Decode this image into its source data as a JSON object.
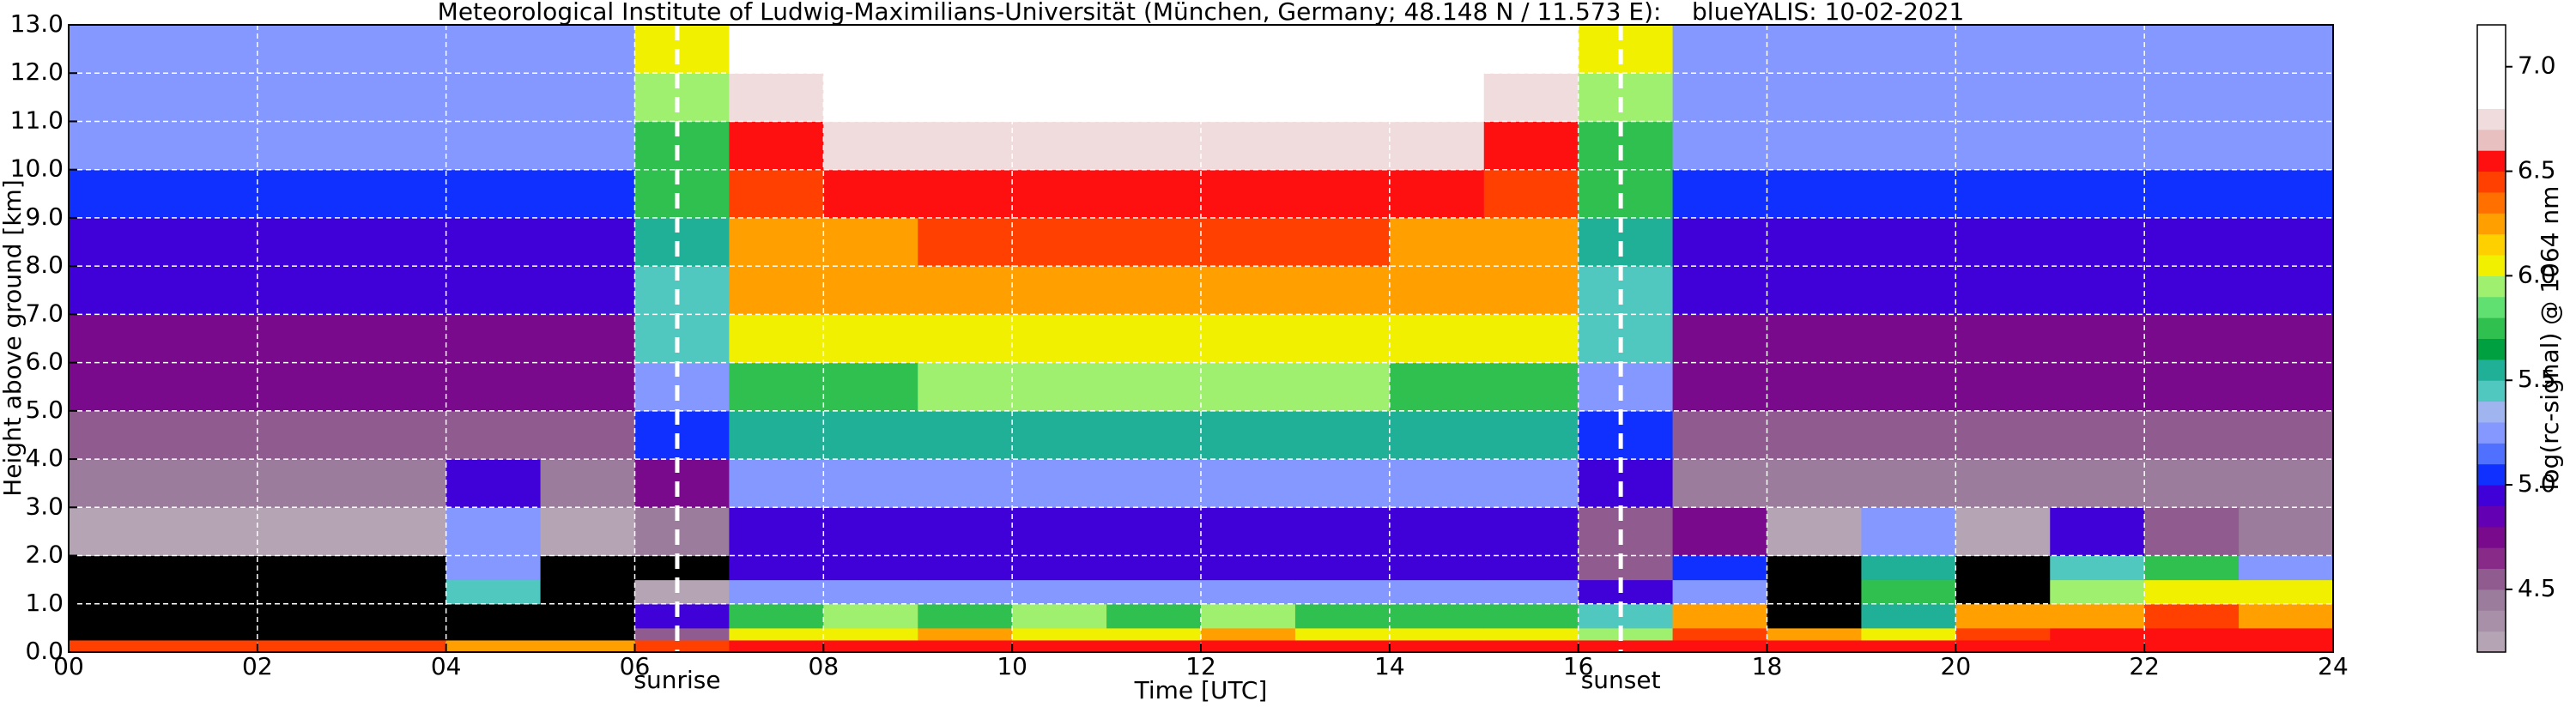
{
  "chart_data": {
    "type": "heatmap",
    "title": "Meteorological Institute of Ludwig-Maximilians-Universität (München, Germany; 48.148 N / 11.573 E):    blueYALIS: 10-02-2021",
    "xlabel": "Time [UTC]",
    "ylabel": "Height above ground [km]",
    "colorbar_label": "log(rc-signal) @ 1064 nm",
    "xlim": [
      0,
      24
    ],
    "ylim": [
      0,
      13
    ],
    "xticks": [
      {
        "value": 0,
        "label": "00"
      },
      {
        "value": 2,
        "label": "02"
      },
      {
        "value": 4,
        "label": "04"
      },
      {
        "value": 6,
        "label": "06"
      },
      {
        "value": 8,
        "label": "08"
      },
      {
        "value": 10,
        "label": "10"
      },
      {
        "value": 12,
        "label": "12"
      },
      {
        "value": 14,
        "label": "14"
      },
      {
        "value": 16,
        "label": "16"
      },
      {
        "value": 18,
        "label": "18"
      },
      {
        "value": 20,
        "label": "20"
      },
      {
        "value": 22,
        "label": "22"
      },
      {
        "value": 24,
        "label": "24"
      }
    ],
    "yticks": [
      {
        "value": 0,
        "label": "0.0"
      },
      {
        "value": 1,
        "label": "1.0"
      },
      {
        "value": 2,
        "label": "2.0"
      },
      {
        "value": 3,
        "label": "3.0"
      },
      {
        "value": 4,
        "label": "4.0"
      },
      {
        "value": 5,
        "label": "5.0"
      },
      {
        "value": 6,
        "label": "6.0"
      },
      {
        "value": 7,
        "label": "7.0"
      },
      {
        "value": 8,
        "label": "8.0"
      },
      {
        "value": 9,
        "label": "9.0"
      },
      {
        "value": 10,
        "label": "10.0"
      },
      {
        "value": 11,
        "label": "11.0"
      },
      {
        "value": 12,
        "label": "12.0"
      },
      {
        "value": 13,
        "label": "13.0"
      }
    ],
    "grid": true,
    "grid_color": "#ffffff",
    "zlim": [
      4.2,
      7.2
    ],
    "zticks": [
      4.5,
      {
        "value": 5,
        "label": "5.0"
      },
      5.5,
      {
        "value": 6,
        "label": "6.0"
      },
      6.5,
      {
        "value": 7,
        "label": "7.0"
      }
    ],
    "colormap": [
      "#b4a4b4",
      "#a890a8",
      "#9c7c9c",
      "#905c90",
      "#882a88",
      "#7a0a8c",
      "#6400b4",
      "#4000d8",
      "#1030ff",
      "#5070ff",
      "#8498ff",
      "#a0b4f0",
      "#50c8c0",
      "#20b098",
      "#00a040",
      "#30c050",
      "#60e070",
      "#a0f070",
      "#f0f000",
      "#ffd000",
      "#ffa000",
      "#ff7000",
      "#ff4000",
      "#ff1010",
      "#e8c0c0",
      "#f0dcdc",
      "#ffffff",
      "#ffffff",
      "#ffffff",
      "#ffffff"
    ],
    "under_color": "#000000",
    "annotations": [
      {
        "text": "sunrise",
        "x": 6.45
      },
      {
        "text": "sunset",
        "x": 16.45
      }
    ],
    "xbins": [
      0,
      1,
      2,
      3,
      4,
      5,
      6,
      7,
      8,
      9,
      10,
      11,
      12,
      13,
      14,
      15,
      16,
      17,
      18,
      19,
      20,
      21,
      22,
      23,
      24
    ],
    "ybins": [
      0,
      0.25,
      0.5,
      1,
      1.5,
      2,
      3,
      4,
      5,
      6,
      7,
      8,
      9,
      10,
      11,
      12,
      13
    ],
    "z": [
      [
        6.4,
        6.4,
        6.4,
        6.4,
        6.3,
        6.3,
        6.4,
        6.5,
        6.5,
        6.5,
        6.5,
        6.5,
        6.5,
        6.5,
        6.5,
        6.5,
        6.5,
        6.6,
        6.6,
        6.6,
        6.6,
        6.6,
        6.6,
        6.6
      ],
      [
        4.0,
        4.0,
        4.0,
        4.0,
        4.0,
        4.0,
        4.6,
        6.0,
        6.1,
        6.2,
        6.1,
        6.0,
        6.2,
        6.1,
        6.0,
        6.1,
        5.9,
        6.4,
        6.3,
        6.0,
        6.4,
        6.5,
        6.6,
        6.5
      ],
      [
        4.0,
        4.0,
        4.0,
        4.0,
        4.0,
        4.0,
        4.9,
        5.8,
        5.9,
        5.8,
        5.9,
        5.8,
        5.9,
        5.8,
        5.8,
        5.7,
        5.5,
        6.2,
        4.0,
        5.6,
        6.2,
        6.3,
        6.4,
        6.3
      ],
      [
        4.0,
        4.0,
        4.0,
        4.0,
        5.4,
        4.0,
        4.2,
        5.2,
        5.2,
        5.2,
        5.2,
        5.2,
        5.2,
        5.2,
        5.2,
        5.2,
        5.0,
        5.3,
        4.0,
        5.8,
        4.0,
        5.9,
        6.1,
        6.0
      ],
      [
        4.0,
        4.0,
        4.0,
        4.0,
        5.3,
        4.0,
        4.1,
        4.9,
        4.9,
        4.9,
        4.9,
        4.9,
        4.9,
        4.9,
        4.9,
        4.9,
        4.6,
        5.1,
        4.0,
        5.6,
        4.0,
        5.5,
        5.8,
        5.3
      ],
      [
        4.3,
        4.3,
        4.3,
        4.3,
        5.2,
        4.3,
        4.4,
        5.0,
        5.0,
        5.0,
        5.0,
        5.0,
        5.0,
        5.0,
        5.0,
        5.0,
        4.6,
        4.7,
        4.3,
        5.3,
        4.3,
        4.9,
        4.6,
        4.4
      ],
      [
        4.5,
        4.5,
        4.5,
        4.5,
        5.0,
        4.5,
        4.8,
        5.3,
        5.3,
        5.3,
        5.3,
        5.3,
        5.3,
        5.3,
        5.3,
        5.3,
        4.9,
        4.5,
        4.5,
        4.5,
        4.5,
        4.5,
        4.5,
        4.5
      ],
      [
        4.6,
        4.6,
        4.6,
        4.6,
        4.6,
        4.6,
        5.1,
        5.6,
        5.6,
        5.6,
        5.6,
        5.6,
        5.6,
        5.6,
        5.6,
        5.6,
        5.1,
        4.6,
        4.6,
        4.6,
        4.6,
        4.6,
        4.6,
        4.6
      ],
      [
        4.7,
        4.7,
        4.7,
        4.7,
        4.7,
        4.7,
        5.2,
        5.8,
        5.8,
        5.9,
        5.9,
        5.9,
        5.9,
        5.9,
        5.8,
        5.8,
        5.2,
        4.7,
        4.7,
        4.7,
        4.7,
        4.7,
        4.7,
        4.7
      ],
      [
        4.8,
        4.8,
        4.8,
        4.8,
        4.8,
        4.8,
        5.4,
        6.0,
        6.0,
        6.1,
        6.1,
        6.1,
        6.1,
        6.1,
        6.0,
        6.0,
        5.4,
        4.8,
        4.8,
        4.8,
        4.8,
        4.8,
        4.8,
        4.8
      ],
      [
        4.9,
        4.9,
        4.9,
        4.9,
        4.9,
        4.9,
        5.5,
        6.2,
        6.2,
        6.3,
        6.3,
        6.3,
        6.3,
        6.3,
        6.2,
        6.2,
        5.5,
        4.9,
        4.9,
        4.9,
        4.9,
        4.9,
        4.9,
        4.9
      ],
      [
        5.0,
        5.0,
        5.0,
        5.0,
        5.0,
        5.0,
        5.6,
        6.3,
        6.3,
        6.4,
        6.4,
        6.4,
        6.4,
        6.4,
        6.3,
        6.3,
        5.6,
        5.0,
        5.0,
        5.0,
        5.0,
        5.0,
        5.0,
        5.0
      ],
      [
        5.1,
        5.1,
        5.1,
        5.1,
        5.1,
        5.1,
        5.7,
        6.4,
        6.5,
        6.6,
        6.6,
        6.6,
        6.6,
        6.6,
        6.5,
        6.4,
        5.7,
        5.1,
        5.1,
        5.1,
        5.1,
        5.1,
        5.1,
        5.1
      ],
      [
        5.2,
        5.2,
        5.2,
        5.2,
        5.2,
        5.2,
        5.8,
        6.6,
        6.7,
        6.8,
        6.8,
        6.8,
        6.8,
        6.8,
        6.7,
        6.6,
        5.8,
        5.2,
        5.2,
        5.2,
        5.2,
        5.2,
        5.2,
        5.2
      ],
      [
        5.25,
        5.25,
        5.25,
        5.25,
        5.25,
        5.25,
        5.9,
        6.8,
        6.9,
        7.0,
        7.0,
        7.0,
        7.0,
        7.0,
        6.9,
        6.8,
        5.9,
        5.25,
        5.25,
        5.25,
        5.25,
        5.25,
        5.25,
        5.25
      ],
      [
        5.3,
        5.3,
        5.3,
        5.3,
        5.3,
        5.3,
        6.0,
        7.0,
        7.0,
        7.1,
        7.1,
        7.1,
        7.1,
        7.1,
        7.0,
        7.0,
        6.0,
        5.3,
        5.3,
        5.3,
        5.3,
        5.3,
        5.3,
        5.3
      ]
    ]
  }
}
